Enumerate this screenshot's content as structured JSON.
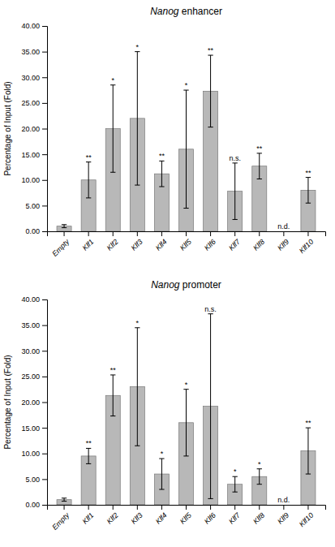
{
  "chart_data": [
    {
      "type": "bar",
      "title": "Nanog enhancer",
      "categories": [
        "Empty",
        "Klf1",
        "Klf2",
        "Klf3",
        "Klf4",
        "Klf5",
        "Klf6",
        "Klf7",
        "Klf8",
        "Klf9",
        "Klf10"
      ],
      "values": [
        1.0,
        10.0,
        20.0,
        22.0,
        11.2,
        16.0,
        27.3,
        7.8,
        12.7,
        0.0,
        8.0
      ],
      "errors": [
        0.3,
        3.5,
        8.5,
        13.0,
        2.5,
        11.5,
        7.0,
        5.5,
        2.5,
        0.0,
        2.5
      ],
      "annotations": [
        null,
        "**",
        "*",
        "*",
        "**",
        "*",
        "**",
        "n.s.",
        "**",
        "n.d.",
        "**"
      ],
      "color": "#b8b8b8",
      "ylabel": "Percentage of Input (Fold)",
      "ylim": [
        0,
        40
      ],
      "yticks": [
        {
          "value": 0,
          "label": "0.00"
        },
        {
          "value": 5,
          "label": "5.00"
        },
        {
          "value": 10,
          "label": "10.00"
        },
        {
          "value": 15,
          "label": "15.00"
        },
        {
          "value": 20,
          "label": "20.00"
        },
        {
          "value": 25,
          "label": "25.00"
        },
        {
          "value": 30,
          "label": "30.00"
        },
        {
          "value": 35,
          "label": "35.00"
        },
        {
          "value": 40,
          "label": "40.00"
        }
      ]
    },
    {
      "type": "bar",
      "title": "Nanog promoter",
      "categories": [
        "Empty",
        "Klf1",
        "Klf2",
        "Klf3",
        "Klf4",
        "Klf5",
        "Klf6",
        "Klf7",
        "Klf8",
        "Klf9",
        "Klf10"
      ],
      "values": [
        1.0,
        9.5,
        21.3,
        23.0,
        6.0,
        16.0,
        19.2,
        4.0,
        5.5,
        0.0,
        10.5
      ],
      "errors": [
        0.3,
        1.5,
        4.0,
        11.5,
        3.0,
        6.5,
        18.0,
        1.5,
        1.5,
        0.0,
        4.5
      ],
      "annotations": [
        null,
        "**",
        "**",
        "*",
        "*",
        "*",
        "n.s.",
        "*",
        "*",
        "n.d.",
        "**"
      ],
      "color": "#b8b8b8",
      "ylabel": "Percentage of Input (Fold)",
      "ylim": [
        0,
        40
      ],
      "yticks": [
        {
          "value": 0,
          "label": "0.00"
        },
        {
          "value": 5,
          "label": "5.00"
        },
        {
          "value": 10,
          "label": "10.00"
        },
        {
          "value": 15,
          "label": "15.00"
        },
        {
          "value": 20,
          "label": "20.00"
        },
        {
          "value": 25,
          "label": "25.00"
        },
        {
          "value": 30,
          "label": "30.00"
        },
        {
          "value": 35,
          "label": "35.00"
        },
        {
          "value": 40,
          "label": "40.00"
        }
      ]
    }
  ]
}
